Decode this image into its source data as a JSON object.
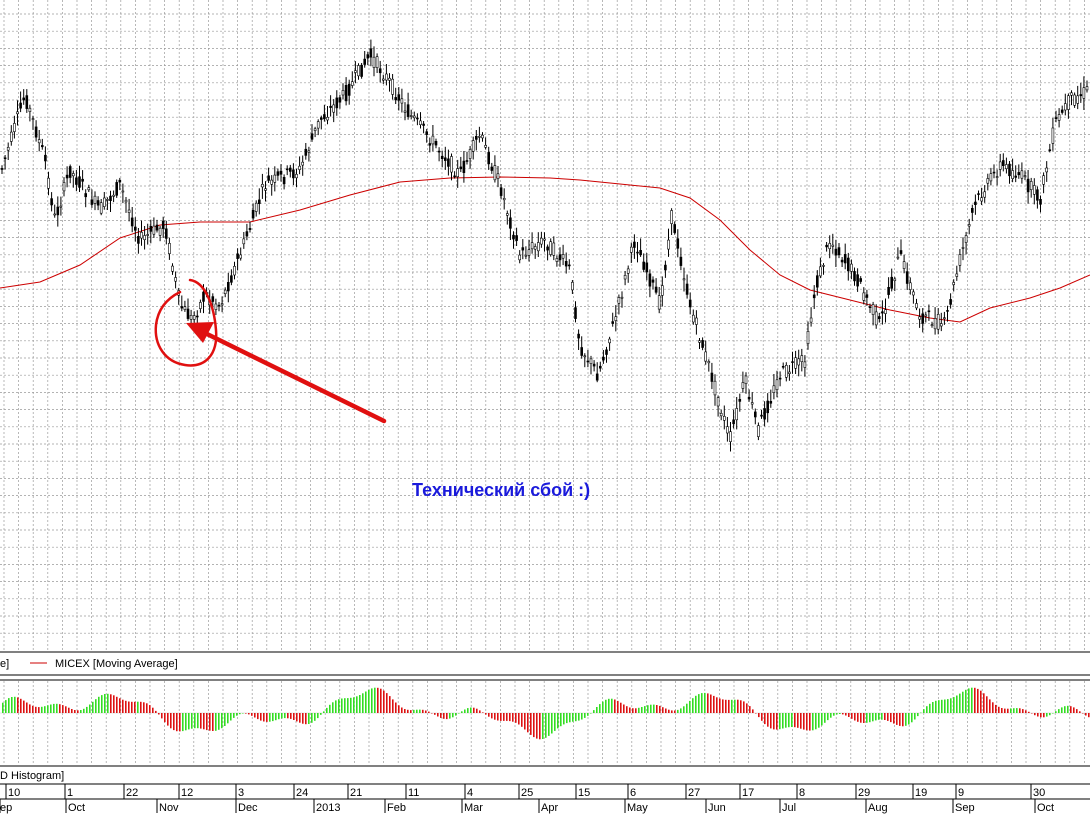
{
  "chart_data": [
    {
      "type": "candlestick",
      "series": [
        {
          "name": "MICEX [Moving Average]",
          "type": "line",
          "color": "#cc0000"
        }
      ],
      "x_tick_labels_top": [
        "10",
        "1",
        "22",
        "12",
        "3",
        "24",
        "21",
        "11",
        "4",
        "25",
        "15",
        "6",
        "27",
        "17",
        "8",
        "29",
        "19",
        "9",
        "30"
      ],
      "x_month_labels": [
        "ep",
        "Oct",
        "Nov",
        "Dec",
        "2013",
        "Feb",
        "Mar",
        "Apr",
        "May",
        "Jun",
        "Jul",
        "Aug",
        "Sep",
        "Oct"
      ],
      "annotations": [
        {
          "text": "Технический сбой :)",
          "color": "#1a1adb"
        }
      ],
      "grid": true
    },
    {
      "type": "histogram",
      "legend": "D Histogram]",
      "colors": {
        "positive": "#33dd22",
        "negative": "#dd1111"
      }
    }
  ],
  "legend_main_left": "e]",
  "legend_main": "MICEX [Moving Average]",
  "legend_sub": "D Histogram]",
  "annotation_text": "Технический сбой :)",
  "colors": {
    "candle": "#000000",
    "ma": "#cc0000",
    "marker": "#e01010",
    "annotation": "#1a1adb",
    "grid": "#9a9a9a"
  }
}
